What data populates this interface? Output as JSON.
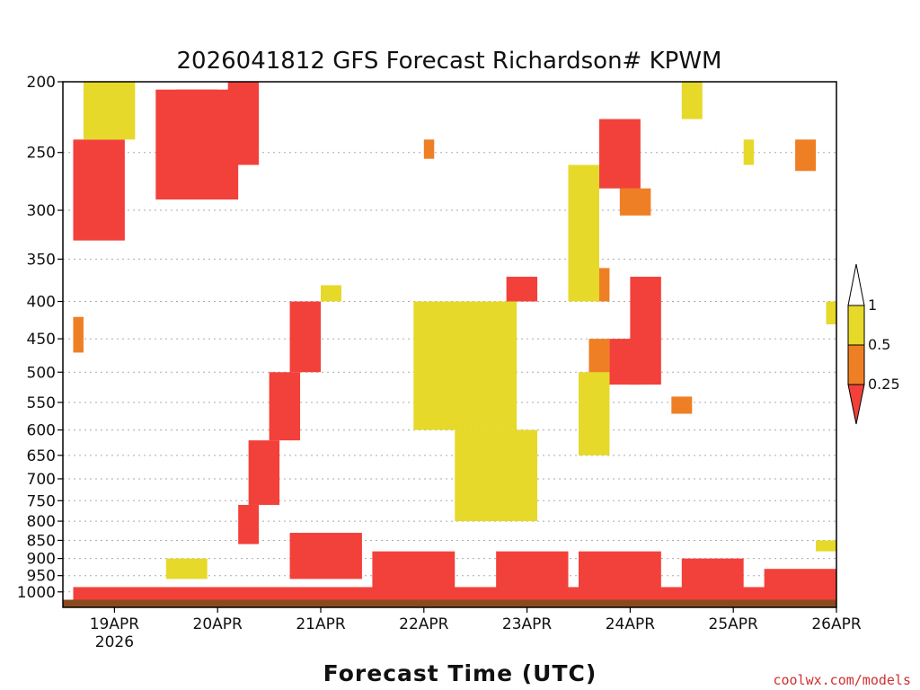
{
  "chart_data": {
    "type": "heatmap",
    "title": "2026041812 GFS Forecast Richardson# KPWM",
    "xlabel": "Forecast Time (UTC)",
    "ylabel": "",
    "credit": "coolwx.com/models",
    "y_ticks": [
      200,
      250,
      300,
      350,
      400,
      450,
      500,
      550,
      600,
      650,
      700,
      750,
      800,
      850,
      900,
      950,
      1000
    ],
    "y_tick_labels": [
      "200",
      "250",
      "300",
      "350",
      "400",
      "450",
      "500",
      "550",
      "600",
      "650",
      "700",
      "750",
      "800",
      "850",
      "900",
      "950",
      "1000"
    ],
    "ylim": [
      200,
      1050
    ],
    "y_scale": "log-pressure",
    "y_grid": "dotted",
    "x_ticks": [
      "19APR",
      "20APR",
      "21APR",
      "22APR",
      "23APR",
      "24APR",
      "25APR",
      "26APR"
    ],
    "x_tick_year": "2026",
    "xlim_days": [
      18.5,
      26.0
    ],
    "legend": {
      "placement": "right",
      "levels": [
        "1",
        "0.5",
        "0.25"
      ],
      "colors": {
        "above_1": "#ffffff",
        "0.5-1": "#e6d92a",
        "0.25-0.5": "#ef7f24",
        "below_0.25": "#f2413a"
      }
    },
    "colors": {
      "ground": "#8b4a1e",
      "frame": "#000000",
      "grid": "#aaaaaa"
    },
    "series": [
      {
        "level": "below_0.25",
        "cells": [
          [
            18.6,
            19.1,
            240,
            330
          ],
          [
            19.4,
            20.2,
            205,
            290
          ],
          [
            19.6,
            20.0,
            205,
            250
          ],
          [
            20.1,
            20.4,
            200,
            260
          ],
          [
            20.7,
            21.0,
            400,
            500
          ],
          [
            20.5,
            20.8,
            500,
            620
          ],
          [
            20.3,
            20.6,
            620,
            760
          ],
          [
            20.2,
            20.4,
            760,
            860
          ],
          [
            23.7,
            24.1,
            225,
            280
          ],
          [
            23.9,
            24.1,
            280,
            300
          ],
          [
            24.0,
            24.3,
            370,
            520
          ],
          [
            23.8,
            24.1,
            450,
            520
          ],
          [
            22.8,
            23.1,
            370,
            400
          ],
          [
            22.9,
            23.0,
            600,
            650
          ],
          [
            20.7,
            21.4,
            830,
            960
          ],
          [
            21.5,
            22.3,
            880,
            990
          ],
          [
            22.7,
            23.4,
            880,
            990
          ],
          [
            23.5,
            24.3,
            880,
            990
          ],
          [
            24.5,
            25.1,
            900,
            990
          ],
          [
            25.3,
            26.0,
            930,
            990
          ],
          [
            18.6,
            26.0,
            985,
            1030
          ]
        ]
      },
      {
        "level": "0.25-0.5",
        "cells": [
          [
            23.9,
            24.2,
            280,
            305
          ],
          [
            23.6,
            23.8,
            450,
            520
          ],
          [
            23.6,
            23.8,
            360,
            400
          ],
          [
            24.4,
            24.6,
            540,
            570
          ],
          [
            25.6,
            25.8,
            240,
            265
          ],
          [
            18.6,
            18.7,
            420,
            470
          ],
          [
            22.0,
            22.1,
            240,
            255
          ]
        ]
      },
      {
        "level": "0.5-1",
        "cells": [
          [
            21.0,
            21.2,
            380,
            400
          ],
          [
            21.9,
            22.9,
            400,
            600
          ],
          [
            22.3,
            23.1,
            600,
            800
          ],
          [
            23.4,
            23.7,
            260,
            400
          ],
          [
            23.5,
            23.8,
            500,
            650
          ],
          [
            24.5,
            24.7,
            200,
            225
          ],
          [
            19.5,
            19.9,
            900,
            960
          ],
          [
            18.7,
            19.2,
            200,
            240
          ],
          [
            25.1,
            25.2,
            240,
            260
          ],
          [
            25.9,
            26.0,
            400,
            430
          ],
          [
            25.8,
            26.0,
            850,
            880
          ]
        ]
      }
    ]
  }
}
